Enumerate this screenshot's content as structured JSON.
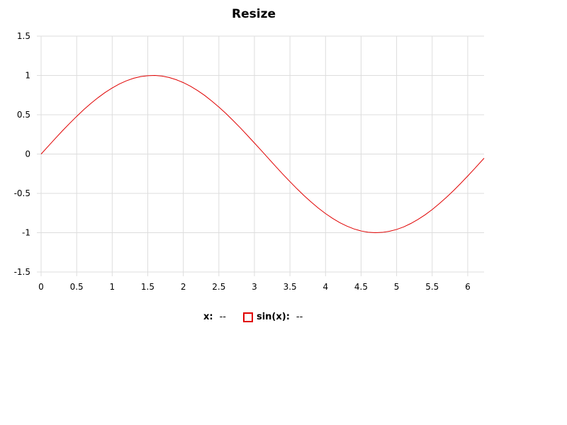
{
  "title": "Resize",
  "legend": {
    "x_label": "x:",
    "x_value": "--",
    "series_label": "sin(x):",
    "series_value": "--",
    "series_color": "#e00000"
  },
  "chart_data": {
    "type": "line",
    "title": "Resize",
    "xlim": [
      0,
      6.23
    ],
    "ylim": [
      -1.5,
      1.5
    ],
    "x_ticks": [
      0,
      0.5,
      1,
      1.5,
      2,
      2.5,
      3,
      3.5,
      4,
      4.5,
      5,
      5.5,
      6
    ],
    "x_tick_labels": [
      "0",
      "0.5",
      "1",
      "1.5",
      "2",
      "2.5",
      "3",
      "3.5",
      "4",
      "4.5",
      "5",
      "5.5",
      "6"
    ],
    "y_ticks": [
      -1.5,
      -1,
      -0.5,
      0,
      0.5,
      1,
      1.5
    ],
    "y_tick_labels": [
      "-1.5",
      "-1",
      "-0.5",
      "0",
      "0.5",
      "1",
      "1.5"
    ],
    "grid": true,
    "series": [
      {
        "name": "sin(x)",
        "color": "#e00000",
        "x": [
          0,
          0.1,
          0.2,
          0.3,
          0.4,
          0.5,
          0.6,
          0.7,
          0.8,
          0.9,
          1,
          1.1,
          1.2,
          1.3,
          1.4,
          1.5,
          1.6,
          1.7,
          1.8,
          1.9,
          2,
          2.1,
          2.2,
          2.3,
          2.4,
          2.5,
          2.6,
          2.7,
          2.8,
          2.9,
          3,
          3.1,
          3.2,
          3.3,
          3.4,
          3.5,
          3.6,
          3.7,
          3.8,
          3.9,
          4,
          4.1,
          4.2,
          4.3,
          4.4,
          4.5,
          4.6,
          4.7,
          4.8,
          4.9,
          5,
          5.1,
          5.2,
          5.3,
          5.4,
          5.5,
          5.6,
          5.7,
          5.8,
          5.9,
          6,
          6.1,
          6.23
        ],
        "y": [
          0,
          0.1,
          0.199,
          0.296,
          0.389,
          0.479,
          0.565,
          0.644,
          0.717,
          0.783,
          0.841,
          0.891,
          0.932,
          0.964,
          0.985,
          0.997,
          1.0,
          0.992,
          0.974,
          0.946,
          0.909,
          0.863,
          0.808,
          0.746,
          0.675,
          0.598,
          0.516,
          0.427,
          0.335,
          0.239,
          0.141,
          0.042,
          -0.058,
          -0.158,
          -0.256,
          -0.351,
          -0.443,
          -0.53,
          -0.612,
          -0.688,
          -0.757,
          -0.818,
          -0.872,
          -0.916,
          -0.952,
          -0.978,
          -0.994,
          -1.0,
          -0.996,
          -0.982,
          -0.959,
          -0.926,
          -0.883,
          -0.832,
          -0.773,
          -0.706,
          -0.631,
          -0.551,
          -0.465,
          -0.374,
          -0.279,
          -0.182,
          -0.053
        ]
      }
    ]
  }
}
